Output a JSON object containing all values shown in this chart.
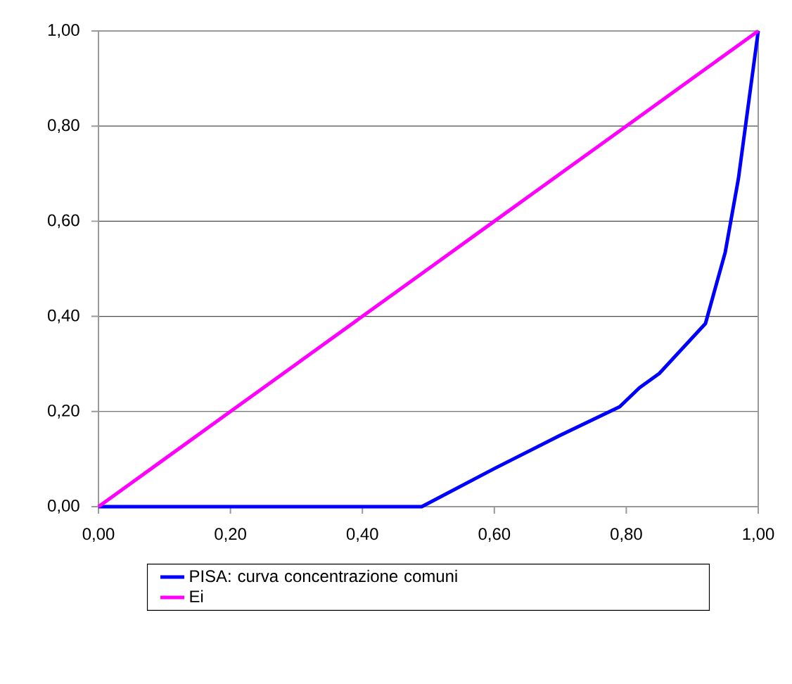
{
  "chart_data": {
    "type": "line",
    "x": [
      0,
      0.1,
      0.2,
      0.3,
      0.4,
      0.49,
      0.6,
      0.7,
      0.79,
      0.82,
      0.85,
      0.92,
      0.95,
      0.97,
      1
    ],
    "series": [
      {
        "name": "PISA: curva concentrazione comuni",
        "color": "#0000ff",
        "values": [
          0,
          0,
          0,
          0,
          0,
          0,
          0.08,
          0.15,
          0.21,
          0.25,
          0.28,
          0.385,
          0.535,
          0.69,
          1
        ]
      },
      {
        "name": "Ei",
        "color": "#ff00ff",
        "x": [
          0,
          0.05,
          0.1,
          0.2,
          0.3,
          0.4,
          0.5,
          0.6,
          0.7,
          0.8,
          0.9,
          1
        ],
        "values": [
          0,
          0.05,
          0.1,
          0.2,
          0.3,
          0.4,
          0.5,
          0.6,
          0.7,
          0.8,
          0.9,
          1
        ]
      }
    ],
    "xlim": [
      0,
      1
    ],
    "ylim": [
      0,
      1
    ],
    "xticks": [
      {
        "value": 0,
        "label": "0,00"
      },
      {
        "value": 0.2,
        "label": "0,20"
      },
      {
        "value": 0.4,
        "label": "0,40"
      },
      {
        "value": 0.6,
        "label": "0,60"
      },
      {
        "value": 0.8,
        "label": "0,80"
      },
      {
        "value": 1,
        "label": "1,00"
      }
    ],
    "yticks": [
      {
        "value": 0,
        "label": "0,00"
      },
      {
        "value": 0.2,
        "label": "0,20"
      },
      {
        "value": 0.4,
        "label": "0,40"
      },
      {
        "value": 0.6,
        "label": "0,60"
      },
      {
        "value": 0.8,
        "label": "0,80"
      },
      {
        "value": 1,
        "label": "1,00"
      }
    ],
    "grid": "y",
    "legend": "bottom",
    "marker": "none",
    "line_style": "solid"
  }
}
